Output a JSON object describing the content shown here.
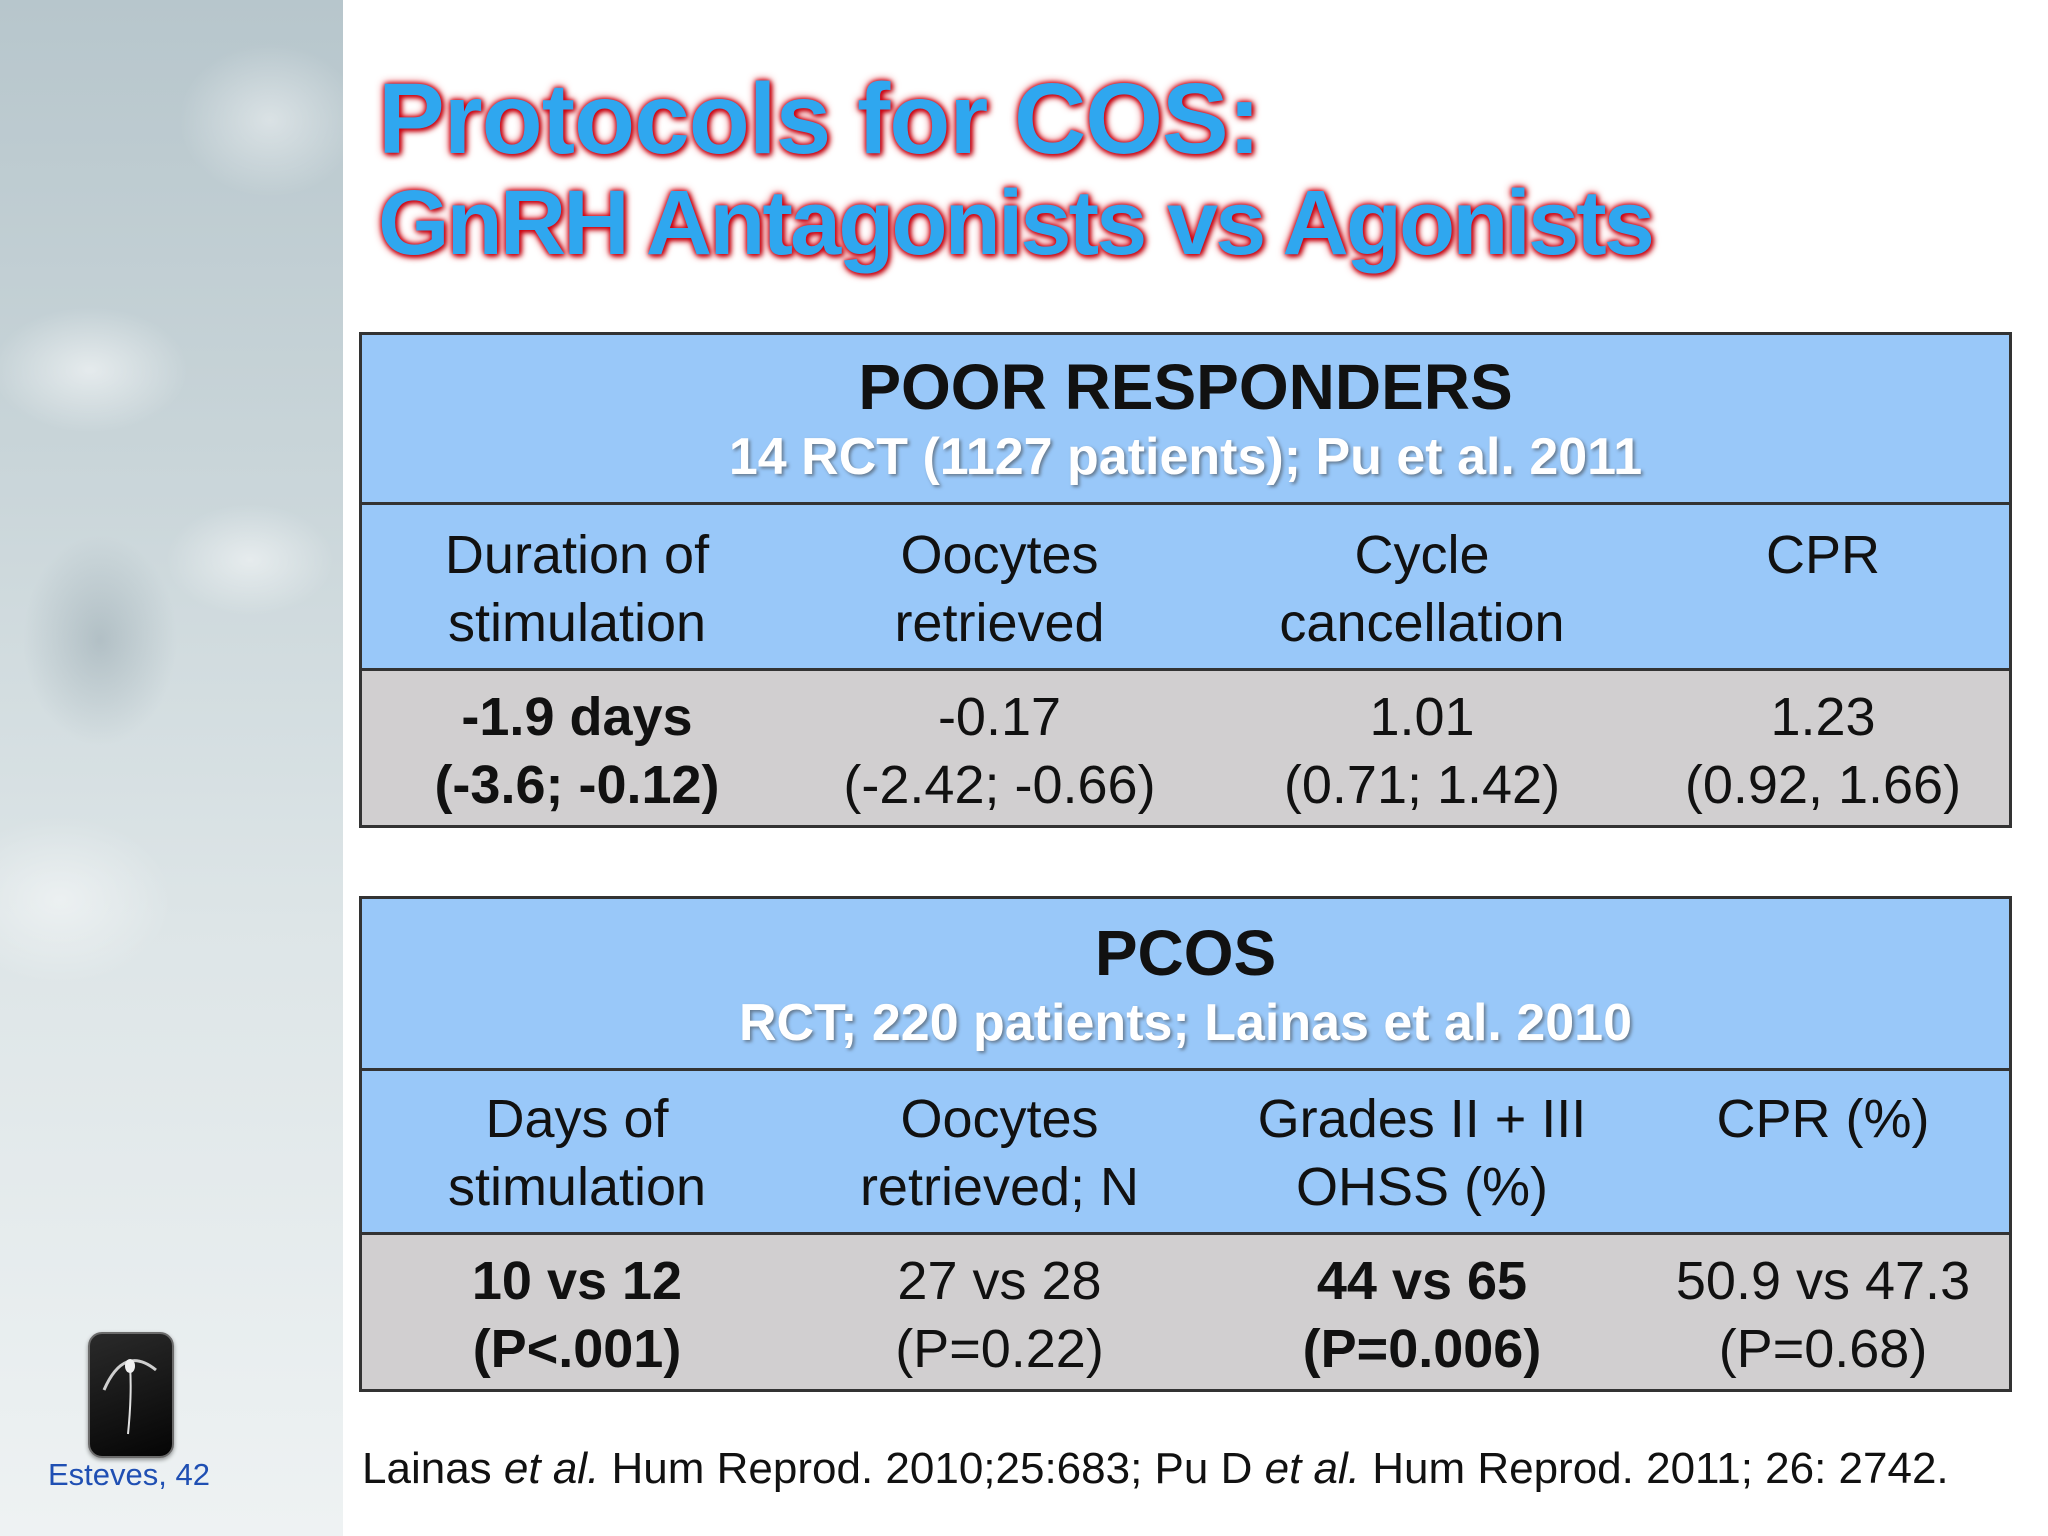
{
  "title": {
    "line1": "Protocols for COS:",
    "line2": "GnRH Antagonists vs Agonists"
  },
  "poor_responders": {
    "title": "POOR RESPONDERS",
    "subtitle": "14 RCT (1127 patients); Pu et al. 2011",
    "columns": [
      [
        "Duration of",
        "stimulation"
      ],
      [
        "Oocytes",
        "retrieved"
      ],
      [
        "Cycle",
        "cancellation"
      ],
      [
        "CPR",
        ""
      ]
    ],
    "values": [
      [
        "-1.9 days",
        "(-3.6; -0.12)"
      ],
      [
        "-0.17",
        "(-2.42; -0.66)"
      ],
      [
        "1.01",
        "(0.71; 1.42)"
      ],
      [
        "1.23",
        "(0.92, 1.66)"
      ]
    ]
  },
  "pcos": {
    "title": "PCOS",
    "subtitle": "RCT; 220 patients; Lainas et al. 2010",
    "columns": [
      [
        "Days of",
        "stimulation"
      ],
      [
        "Oocytes",
        "retrieved; N"
      ],
      [
        "Grades II + III",
        "OHSS (%)"
      ],
      [
        "CPR (%)",
        ""
      ]
    ],
    "values": [
      [
        "10 vs 12",
        "(P<.001)"
      ],
      [
        "27 vs 28",
        "(P=0.22)"
      ],
      [
        "44 vs 65",
        "(P=0.006)"
      ],
      [
        "50.9 vs 47.3",
        "(P=0.68)"
      ]
    ]
  },
  "references": {
    "author1": "Lainas",
    "etal": "et al.",
    "ref1": " Hum Reprod. 2010;25:683; Pu D ",
    "ref2": " Hum Reprod. 2011; 26: 2742."
  },
  "footer": {
    "name": "Esteves, 42"
  }
}
